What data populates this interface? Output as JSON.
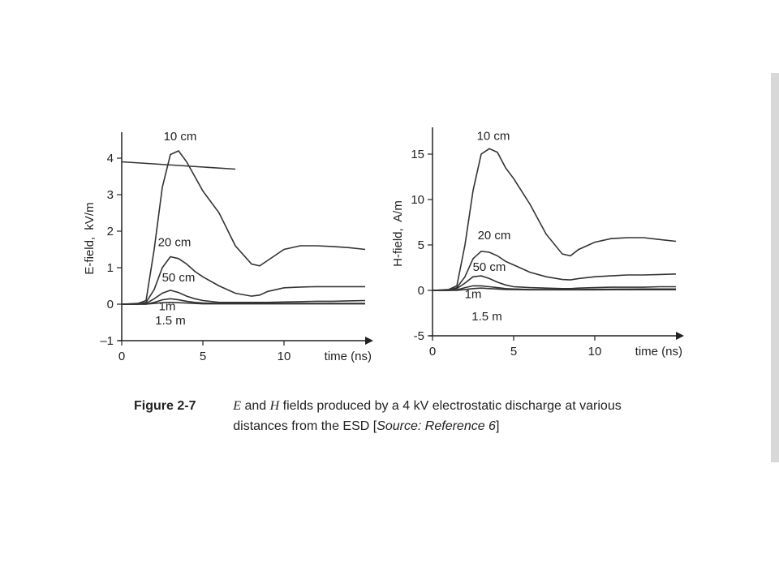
{
  "chart_data": [
    {
      "type": "line",
      "xlabel": "time (ns)",
      "ylabel": "E-field,  kV/m",
      "x": [
        0,
        1,
        1.5,
        2,
        2.5,
        3,
        3.5,
        4,
        4.5,
        5,
        6,
        7,
        8,
        8.5,
        9,
        10,
        11,
        12,
        13,
        14,
        15
      ],
      "xlim": [
        0,
        15
      ],
      "xticks": [
        0,
        5,
        10
      ],
      "ylim": [
        -1,
        4.6
      ],
      "yticks": [
        {
          "value": -1,
          "label": "–1"
        },
        0,
        1,
        2,
        3,
        4
      ],
      "series": [
        {
          "name": "10 cm",
          "color": "#333333",
          "values": [
            0,
            0.02,
            0.1,
            1.5,
            3.2,
            4.1,
            4.2,
            3.9,
            3.5,
            3.1,
            2.5,
            1.6,
            1.1,
            1.05,
            1.2,
            1.5,
            1.6,
            1.6,
            1.58,
            1.55,
            1.5
          ]
        },
        {
          "name": "20 cm",
          "color": "#333333",
          "values": [
            0,
            0,
            0.05,
            0.4,
            1.0,
            1.3,
            1.25,
            1.1,
            0.9,
            0.75,
            0.5,
            0.3,
            0.22,
            0.25,
            0.35,
            0.45,
            0.47,
            0.48,
            0.48,
            0.48,
            0.48
          ]
        },
        {
          "name": "50 cm",
          "color": "#333333",
          "values": [
            0,
            0,
            0.02,
            0.15,
            0.3,
            0.38,
            0.32,
            0.22,
            0.15,
            0.1,
            0.05,
            0.05,
            0.05,
            0.05,
            0.05,
            0.06,
            0.07,
            0.08,
            0.08,
            0.09,
            0.1
          ]
        },
        {
          "name": "1m",
          "color": "#333333",
          "values": [
            0,
            0,
            0,
            0.05,
            0.12,
            0.15,
            0.12,
            0.08,
            0.05,
            0.03,
            0.02,
            0.02,
            0.02,
            0.02,
            0.02,
            0.02,
            0.02,
            0.02,
            0.02,
            0.02,
            0.02
          ]
        },
        {
          "name": "1.5 m",
          "color": "#333333",
          "values": [
            0,
            0,
            0,
            0.02,
            0.04,
            0.05,
            0.04,
            0.03,
            0.02,
            0.01,
            0.01,
            0.01,
            0.01,
            0.01,
            0.01,
            0.01,
            0.01,
            0.01,
            0.01,
            0.01,
            0.01
          ]
        },
        {
          "color": "#333333",
          "x": [
            0,
            7
          ],
          "values": [
            3.9,
            3.7
          ]
        }
      ]
    },
    {
      "type": "line",
      "xlabel": "time (ns)",
      "ylabel": "H-field,  A/m",
      "x": [
        0,
        1,
        1.5,
        2,
        2.5,
        3,
        3.5,
        4,
        4.5,
        5,
        6,
        7,
        8,
        8.5,
        9,
        10,
        11,
        12,
        13,
        14,
        15
      ],
      "xlim": [
        0,
        15
      ],
      "xticks": [
        0,
        5,
        10
      ],
      "ylim": [
        -5,
        17.5
      ],
      "yticks": [
        -5,
        0,
        5,
        10,
        15
      ],
      "series": [
        {
          "name": "10 cm",
          "color": "#333333",
          "values": [
            0,
            0.1,
            0.5,
            5,
            11,
            15,
            15.6,
            15.2,
            13.5,
            12.3,
            9.5,
            6.2,
            4,
            3.8,
            4.5,
            5.3,
            5.7,
            5.8,
            5.8,
            5.6,
            5.4
          ]
        },
        {
          "name": "20 cm",
          "color": "#333333",
          "values": [
            0,
            0,
            0.3,
            1.5,
            3.5,
            4.3,
            4.2,
            3.8,
            3.2,
            2.8,
            2,
            1.5,
            1.2,
            1.15,
            1.3,
            1.5,
            1.6,
            1.7,
            1.7,
            1.75,
            1.8
          ]
        },
        {
          "name": "50 cm",
          "color": "#333333",
          "values": [
            0,
            0,
            0.2,
            0.8,
            1.5,
            1.6,
            1.3,
            0.9,
            0.6,
            0.4,
            0.3,
            0.25,
            0.2,
            0.2,
            0.25,
            0.3,
            0.35,
            0.35,
            0.35,
            0.4,
            0.4
          ]
        },
        {
          "name": "1m",
          "color": "#333333",
          "values": [
            0,
            0,
            0.05,
            0.3,
            0.5,
            0.5,
            0.4,
            0.3,
            0.2,
            0.15,
            0.1,
            0.1,
            0.1,
            0.1,
            0.1,
            0.12,
            0.13,
            0.14,
            0.15,
            0.15,
            0.15
          ]
        },
        {
          "name": "1.5 m",
          "color": "#333333",
          "values": [
            0,
            0,
            0,
            0.1,
            0.2,
            0.25,
            0.2,
            0.15,
            0.1,
            0.08,
            0.06,
            0.06,
            0.06,
            0.06,
            0.06,
            0.06,
            0.07,
            0.07,
            0.07,
            0.07,
            0.07
          ]
        }
      ]
    }
  ],
  "caption": {
    "label": "Figure 2-7",
    "line1": [
      "E",
      " and ",
      "H",
      " fields produced by a 4 kV electrostatic discharge at various"
    ],
    "line2": [
      "distances from the ESD [",
      "Source: Reference 6",
      "]"
    ]
  }
}
